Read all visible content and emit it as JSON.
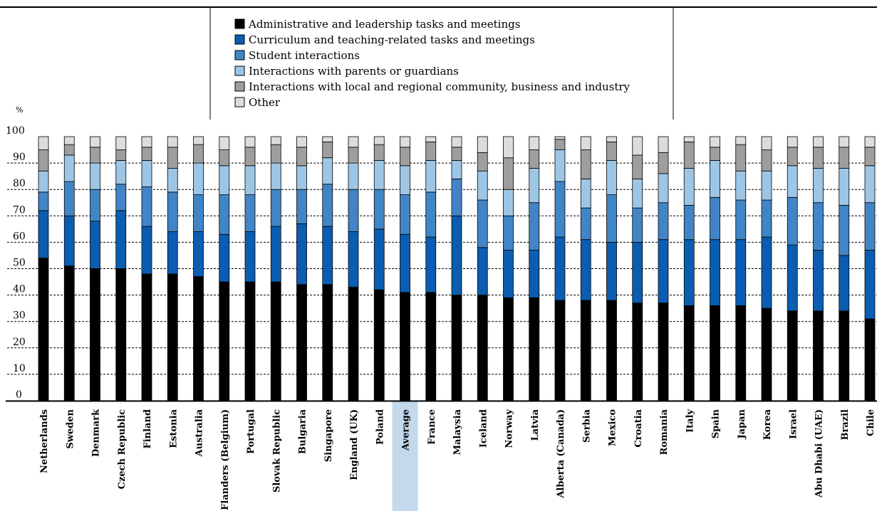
{
  "chart_data": {
    "type": "bar",
    "stacked": true,
    "unit_label": "%",
    "ylim": [
      0,
      100
    ],
    "yticks": [
      0,
      10,
      20,
      30,
      40,
      50,
      60,
      70,
      80,
      90,
      100
    ],
    "grid": true,
    "legend_position": "top-center",
    "highlight_category": "Average",
    "highlight_color": "#c5d9ec",
    "categories": [
      "Netherlands",
      "Sweden",
      "Denmark",
      "Czech Republic",
      "Finland",
      "Estonia",
      "Australia",
      "Flanders (Belgium)",
      "Portugal",
      "Slovak Republic",
      "Bulgaria",
      "Singapore",
      "England (UK)",
      "Poland",
      "Average",
      "France",
      "Malaysia",
      "Iceland",
      "Norway",
      "Latvia",
      "Alberta (Canada)",
      "Serbia",
      "Mexico",
      "Croatia",
      "Romania",
      "Italy",
      "Spain",
      "Japan",
      "Korea",
      "Israel",
      "Abu Dhabi (UAE)",
      "Brazil",
      "Chile"
    ],
    "series": [
      {
        "name": "Administrative and leadership tasks and meetings",
        "color": "#000000",
        "values": [
          54,
          51,
          50,
          50,
          48,
          48,
          47,
          45,
          45,
          45,
          44,
          44,
          43,
          42,
          41,
          41,
          40,
          40,
          39,
          39,
          38,
          38,
          38,
          37,
          37,
          36,
          36,
          36,
          35,
          34,
          34,
          34,
          31
        ]
      },
      {
        "name": "Curriculum and teaching-related tasks and meetings",
        "color": "#0a5db0",
        "values": [
          18,
          19,
          18,
          22,
          18,
          16,
          17,
          18,
          19,
          21,
          23,
          22,
          21,
          23,
          22,
          21,
          30,
          18,
          18,
          18,
          24,
          23,
          22,
          23,
          24,
          25,
          25,
          25,
          27,
          25,
          23,
          21,
          26
        ]
      },
      {
        "name": "Student interactions",
        "color": "#4185c6",
        "values": [
          7,
          13,
          12,
          10,
          15,
          15,
          14,
          15,
          14,
          14,
          13,
          16,
          16,
          15,
          15,
          17,
          14,
          18,
          13,
          18,
          21,
          12,
          18,
          13,
          14,
          13,
          16,
          15,
          14,
          18,
          18,
          19,
          18
        ]
      },
      {
        "name": "Interactions with parents or guardians",
        "color": "#9dc6e6",
        "values": [
          8,
          10,
          10,
          9,
          10,
          9,
          12,
          11,
          11,
          10,
          9,
          10,
          10,
          11,
          11,
          12,
          7,
          11,
          10,
          13,
          12,
          11,
          13,
          11,
          11,
          14,
          14,
          11,
          11,
          12,
          13,
          14,
          14
        ]
      },
      {
        "name": "Interactions with local and regional community, business and industry",
        "color": "#9e9e9e",
        "values": [
          8,
          4,
          6,
          4,
          5,
          8,
          7,
          6,
          7,
          7,
          7,
          6,
          6,
          6,
          7,
          7,
          5,
          7,
          12,
          7,
          4,
          11,
          7,
          9,
          8,
          10,
          5,
          10,
          8,
          7,
          8,
          8,
          7
        ]
      },
      {
        "name": "Other",
        "color": "#dcdcdc",
        "values": [
          5,
          3,
          4,
          5,
          4,
          4,
          3,
          5,
          4,
          3,
          4,
          2,
          4,
          3,
          4,
          2,
          4,
          6,
          8,
          5,
          1,
          5,
          2,
          7,
          6,
          2,
          4,
          3,
          5,
          4,
          4,
          4,
          4
        ]
      }
    ]
  }
}
